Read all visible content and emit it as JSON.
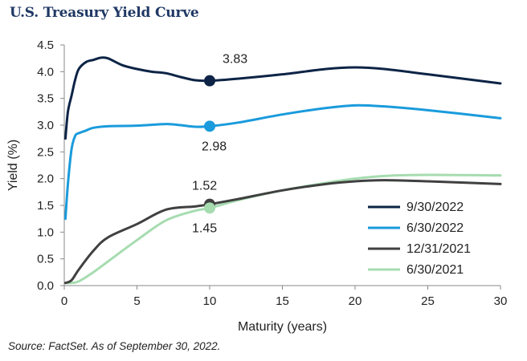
{
  "title": "U.S. Treasury Yield Curve",
  "source": "Source: FactSet. As of September 30, 2022.",
  "chart_data": {
    "type": "line",
    "title": "U.S. Treasury Yield Curve",
    "xlabel": "Maturity (years)",
    "ylabel": "Yield (%)",
    "xlim": [
      0,
      30
    ],
    "ylim": [
      0,
      4.5
    ],
    "xticks": [
      0,
      5,
      10,
      15,
      20,
      25,
      30
    ],
    "yticks": [
      "0.0",
      "0.5",
      "1.0",
      "1.5",
      "2.0",
      "2.5",
      "3.0",
      "3.5",
      "4.0",
      "4.5"
    ],
    "grid": false,
    "legend_position": "bottom-right",
    "series": [
      {
        "name": "9/30/2022",
        "color": "#0d2446",
        "points": [
          [
            0.08,
            2.75
          ],
          [
            0.25,
            3.25
          ],
          [
            0.5,
            3.55
          ],
          [
            0.75,
            3.85
          ],
          [
            1,
            4.05
          ],
          [
            1.5,
            4.18
          ],
          [
            2,
            4.22
          ],
          [
            2.5,
            4.26
          ],
          [
            3,
            4.25
          ],
          [
            4,
            4.12
          ],
          [
            5,
            4.05
          ],
          [
            6,
            4.0
          ],
          [
            7,
            3.97
          ],
          [
            8,
            3.9
          ],
          [
            9,
            3.84
          ],
          [
            10,
            3.83
          ],
          [
            12,
            3.87
          ],
          [
            15,
            3.95
          ],
          [
            18,
            4.05
          ],
          [
            20,
            4.08
          ],
          [
            22,
            4.05
          ],
          [
            25,
            3.95
          ],
          [
            30,
            3.78
          ]
        ],
        "marker_x": 10,
        "marker_label": "3.83"
      },
      {
        "name": "6/30/2022",
        "color": "#1a9bdc",
        "points": [
          [
            0.08,
            1.25
          ],
          [
            0.25,
            1.9
          ],
          [
            0.5,
            2.55
          ],
          [
            0.75,
            2.8
          ],
          [
            1,
            2.85
          ],
          [
            1.5,
            2.9
          ],
          [
            2,
            2.95
          ],
          [
            3,
            2.98
          ],
          [
            5,
            2.99
          ],
          [
            7,
            3.02
          ],
          [
            8,
            3.0
          ],
          [
            9,
            2.97
          ],
          [
            10,
            2.98
          ],
          [
            12,
            3.05
          ],
          [
            15,
            3.2
          ],
          [
            18,
            3.32
          ],
          [
            20,
            3.37
          ],
          [
            22,
            3.35
          ],
          [
            25,
            3.28
          ],
          [
            30,
            3.13
          ]
        ],
        "marker_x": 10,
        "marker_label": "2.98"
      },
      {
        "name": "12/31/2021",
        "color": "#404040",
        "points": [
          [
            0.08,
            0.05
          ],
          [
            0.5,
            0.1
          ],
          [
            1,
            0.3
          ],
          [
            2,
            0.65
          ],
          [
            3,
            0.9
          ],
          [
            5,
            1.15
          ],
          [
            7,
            1.42
          ],
          [
            9,
            1.48
          ],
          [
            10,
            1.52
          ],
          [
            12,
            1.62
          ],
          [
            15,
            1.78
          ],
          [
            18,
            1.9
          ],
          [
            20,
            1.95
          ],
          [
            22,
            1.97
          ],
          [
            25,
            1.95
          ],
          [
            30,
            1.9
          ]
        ],
        "marker_x": 10,
        "marker_label": "1.52"
      },
      {
        "name": "6/30/2021",
        "color": "#a6dcb0",
        "points": [
          [
            0.08,
            0.05
          ],
          [
            0.5,
            0.05
          ],
          [
            1,
            0.08
          ],
          [
            2,
            0.25
          ],
          [
            3,
            0.45
          ],
          [
            5,
            0.85
          ],
          [
            7,
            1.22
          ],
          [
            9,
            1.4
          ],
          [
            10,
            1.45
          ],
          [
            12,
            1.6
          ],
          [
            15,
            1.78
          ],
          [
            18,
            1.92
          ],
          [
            20,
            2.0
          ],
          [
            22,
            2.05
          ],
          [
            25,
            2.07
          ],
          [
            30,
            2.06
          ]
        ],
        "marker_x": 10,
        "marker_label": "1.45"
      }
    ]
  }
}
